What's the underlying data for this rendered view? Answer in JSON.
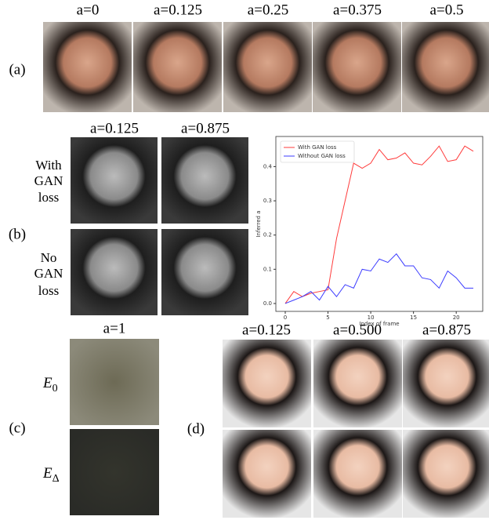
{
  "figure": {
    "a": {
      "label": "(a)",
      "columns": [
        "a=0",
        "a=0.125",
        "a=0.25",
        "a=0.375",
        "a=0.5"
      ]
    },
    "b": {
      "label": "(b)",
      "columns": [
        "a=0.125",
        "a=0.875"
      ],
      "rows": [
        [
          "With",
          "GAN",
          "loss"
        ],
        [
          "No",
          "GAN",
          "loss"
        ]
      ]
    },
    "c": {
      "label": "(c)",
      "column": "a=1",
      "rows": [
        {
          "symbol": "E",
          "subscript": "0"
        },
        {
          "symbol": "E",
          "subscript": "Δ"
        }
      ]
    },
    "d": {
      "label": "(d)",
      "columns": [
        "a=0.125",
        "a=0.500",
        "a=0.875"
      ]
    }
  },
  "chart_data": {
    "type": "line",
    "xlabel": "Index of frame",
    "ylabel": "Inferred a",
    "x": [
      0,
      1,
      2,
      3,
      4,
      5,
      6,
      7,
      8,
      9,
      10,
      11,
      12,
      13,
      14,
      15,
      16,
      17,
      18,
      19,
      20,
      21,
      22
    ],
    "series": [
      {
        "name": "With GAN loss",
        "color": "#ff3b3b",
        "values": [
          0,
          0.035,
          0.02,
          0.03,
          0.035,
          0.04,
          0.19,
          0.3,
          0.41,
          0.395,
          0.41,
          0.45,
          0.42,
          0.425,
          0.44,
          0.41,
          0.405,
          0.43,
          0.46,
          0.415,
          0.42,
          0.46,
          0.445
        ]
      },
      {
        "name": "Without GAN loss",
        "color": "#3b3bff",
        "values": [
          0,
          0.01,
          0.02,
          0.035,
          0.01,
          0.05,
          0.02,
          0.055,
          0.045,
          0.1,
          0.095,
          0.13,
          0.12,
          0.145,
          0.11,
          0.11,
          0.075,
          0.07,
          0.045,
          0.095,
          0.075,
          0.045,
          0.045
        ]
      }
    ],
    "xlim": [
      -1.1,
      23.1
    ],
    "ylim": [
      -0.023,
      0.488
    ],
    "xticks": [
      0,
      5,
      10,
      15,
      20
    ],
    "yticks": [
      {
        "value": 0,
        "label": "0.0"
      },
      {
        "value": 0.1,
        "label": "0.1"
      },
      {
        "value": 0.2,
        "label": "0.2"
      },
      {
        "value": 0.3,
        "label": "0.3"
      },
      {
        "value": 0.4,
        "label": "0.4"
      }
    ],
    "legend": "upper left"
  }
}
